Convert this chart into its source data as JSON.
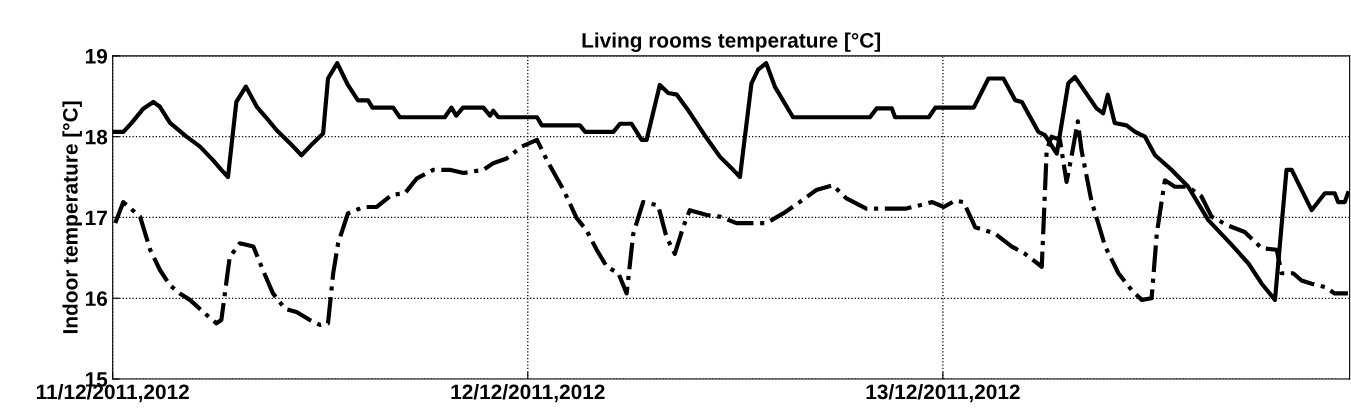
{
  "chart_data": {
    "type": "line",
    "title": "Living rooms temperature [°C]",
    "ylabel": "Indoor temperature [°C]",
    "xlim": [
      "2011-12-11T00:00",
      "2011-12-13T23:31"
    ],
    "xticks": [
      {
        "value": "2011-12-11",
        "label": "11/12/2011,2012"
      },
      {
        "value": "2011-12-12",
        "label": "12/12/2011,2012"
      },
      {
        "value": "2011-12-13",
        "label": "13/12/2011,2012"
      }
    ],
    "ylim": [
      15,
      19
    ],
    "yticks": [
      15,
      16,
      17,
      18,
      19
    ],
    "grid": true,
    "marker": "none",
    "series": [
      {
        "color": "#000000",
        "line_style": "solid",
        "x": [
          "2011-12-11T00:00",
          "2011-12-11T00:37",
          "2011-12-11T01:06",
          "2011-12-11T01:47",
          "2011-12-11T02:21",
          "2011-12-11T02:44",
          "2011-12-11T03:19",
          "2011-12-11T04:16",
          "2011-12-11T05:02",
          "2011-12-11T05:48",
          "2011-12-11T06:17",
          "2011-12-11T06:40",
          "2011-12-11T07:09",
          "2011-12-11T07:42",
          "2011-12-11T08:20",
          "2011-12-11T08:54",
          "2011-12-11T09:29",
          "2011-12-11T10:15",
          "2011-12-11T10:55",
          "2011-12-11T11:35",
          "2011-12-11T12:10",
          "2011-12-11T12:27",
          "2011-12-11T12:59",
          "2011-12-11T13:36",
          "2011-12-11T14:11",
          "2011-12-11T14:46",
          "2011-12-11T15:01",
          "2011-12-11T16:13",
          "2011-12-11T16:36",
          "2011-12-11T19:12",
          "2011-12-11T19:35",
          "2011-12-11T19:52",
          "2011-12-11T20:15",
          "2011-12-11T21:26",
          "2011-12-11T21:49",
          "2011-12-11T22:00",
          "2011-12-11T22:18",
          "2011-12-12T00:32",
          "2011-12-12T00:49",
          "2011-12-12T03:01",
          "2011-12-12T03:19",
          "2011-12-12T04:57",
          "2011-12-12T05:20",
          "2011-12-12T06:00",
          "2011-12-12T06:35",
          "2011-12-12T06:52",
          "2011-12-12T07:38",
          "2011-12-12T08:07",
          "2011-12-12T08:37",
          "2011-12-12T09:12",
          "2011-12-12T10:21",
          "2011-12-12T11:07",
          "2011-12-12T11:47",
          "2011-12-12T12:16",
          "2011-12-12T12:56",
          "2011-12-12T13:19",
          "2011-12-12T13:47",
          "2011-12-12T14:17",
          "2011-12-12T15:20",
          "2011-12-12T19:47",
          "2011-12-12T20:10",
          "2011-12-12T21:03",
          "2011-12-12T21:14",
          "2011-12-12T23:11",
          "2011-12-12T23:34",
          "2011-12-13T01:47",
          "2011-12-13T02:38",
          "2011-12-13T03:30",
          "2011-12-13T04:11",
          "2011-12-13T04:34",
          "2011-12-13T05:31",
          "2011-12-13T05:54",
          "2011-12-13T06:35",
          "2011-12-13T07:15",
          "2011-12-13T07:38",
          "2011-12-13T08:53",
          "2011-12-13T09:16",
          "2011-12-13T09:32",
          "2011-12-13T09:56",
          "2011-12-13T10:37",
          "2011-12-13T11:07",
          "2011-12-13T11:41",
          "2011-12-13T12:16",
          "2011-12-13T13:13",
          "2011-12-13T14:11",
          "2011-12-13T15:20",
          "2011-12-13T16:42",
          "2011-12-13T17:40",
          "2011-12-13T18:26",
          "2011-12-13T19:12",
          "2011-12-13T19:52",
          "2011-12-13T20:10",
          "2011-12-13T21:19",
          "2011-12-13T22:05",
          "2011-12-13T22:39",
          "2011-12-13T22:51",
          "2011-12-13T23:14",
          "2011-12-13T23:25"
        ],
        "values": [
          18.06,
          18.06,
          18.17,
          18.35,
          18.43,
          18.37,
          18.17,
          18.0,
          17.88,
          17.71,
          17.59,
          17.5,
          18.43,
          18.62,
          18.37,
          18.23,
          18.08,
          17.92,
          17.77,
          17.92,
          18.04,
          18.72,
          18.91,
          18.64,
          18.45,
          18.45,
          18.36,
          18.36,
          18.24,
          18.24,
          18.36,
          18.26,
          18.36,
          18.36,
          18.26,
          18.32,
          18.24,
          18.24,
          18.14,
          18.14,
          18.06,
          18.06,
          18.16,
          18.16,
          17.96,
          17.96,
          18.64,
          18.54,
          18.52,
          18.35,
          17.98,
          17.75,
          17.61,
          17.5,
          18.66,
          18.83,
          18.91,
          18.62,
          18.24,
          18.24,
          18.35,
          18.35,
          18.24,
          18.24,
          18.36,
          18.36,
          18.72,
          18.72,
          18.45,
          18.43,
          18.06,
          18.02,
          17.79,
          18.66,
          18.74,
          18.35,
          18.29,
          18.52,
          18.17,
          18.14,
          18.06,
          18.0,
          17.77,
          17.59,
          17.38,
          16.97,
          16.66,
          16.43,
          16.18,
          15.98,
          17.59,
          17.59,
          17.09,
          17.3,
          17.3,
          17.19,
          17.19,
          17.3
        ]
      },
      {
        "color": "#000000",
        "line_style": "dashdot",
        "x": [
          "2011-12-11T00:09",
          "2011-12-11T00:37",
          "2011-12-11T01:35",
          "2011-12-11T02:10",
          "2011-12-11T02:44",
          "2011-12-11T03:19",
          "2011-12-11T03:53",
          "2011-12-11T04:28",
          "2011-12-11T05:14",
          "2011-12-11T06:00",
          "2011-12-11T06:17",
          "2011-12-11T06:46",
          "2011-12-11T07:21",
          "2011-12-11T08:08",
          "2011-12-11T08:41",
          "2011-12-11T09:16",
          "2011-12-11T09:58",
          "2011-12-11T10:38",
          "2011-12-11T11:24",
          "2011-12-11T11:59",
          "2011-12-11T12:27",
          "2011-12-11T12:45",
          "2011-12-11T13:02",
          "2011-12-11T13:36",
          "2011-12-11T14:30",
          "2011-12-11T15:16",
          "2011-12-11T16:08",
          "2011-12-11T16:54",
          "2011-12-11T17:34",
          "2011-12-11T18:32",
          "2011-12-11T19:29",
          "2011-12-11T20:17",
          "2011-12-11T21:26",
          "2011-12-11T22:00",
          "2011-12-11T22:47",
          "2011-12-11T23:40",
          "2011-12-12T00:32",
          "2011-12-12T01:06",
          "2011-12-12T02:04",
          "2011-12-12T02:50",
          "2011-12-12T03:24",
          "2011-12-12T03:59",
          "2011-12-12T04:34",
          "2011-12-12T05:14",
          "2011-12-12T05:43",
          "2011-12-12T06:06",
          "2011-12-12T06:40",
          "2011-12-12T07:32",
          "2011-12-12T08:01",
          "2011-12-12T08:30",
          "2011-12-12T08:59",
          "2011-12-12T09:22",
          "2011-12-12T10:21",
          "2011-12-12T11:07",
          "2011-12-12T12:04",
          "2011-12-12T13:48",
          "2011-12-12T14:46",
          "2011-12-12T15:43",
          "2011-12-12T16:41",
          "2011-12-12T17:38",
          "2011-12-12T18:24",
          "2011-12-12T19:34",
          "2011-12-12T21:53",
          "2011-12-12T23:23",
          "2011-12-13T00:03",
          "2011-12-13T00:43",
          "2011-12-13T01:12",
          "2011-12-13T01:52",
          "2011-12-13T03:01",
          "2011-12-13T03:59",
          "2011-12-13T04:45",
          "2011-12-13T05:43",
          "2011-12-13T06:00",
          "2011-12-13T06:17",
          "2011-12-13T06:46",
          "2011-12-13T07:09",
          "2011-12-13T07:26",
          "2011-12-13T07:48",
          "2011-12-13T08:01",
          "2011-12-13T08:35",
          "2011-12-13T09:23",
          "2011-12-13T10:09",
          "2011-12-13T10:55",
          "2011-12-13T11:30",
          "2011-12-13T12:04",
          "2011-12-13T12:22",
          "2011-12-13T12:50",
          "2011-12-13T13:25",
          "2011-12-13T14:11",
          "2011-12-13T14:57",
          "2011-12-13T15:32",
          "2011-12-13T16:29",
          "2011-12-13T17:27",
          "2011-12-13T18:26",
          "2011-12-13T19:18",
          "2011-12-13T19:35",
          "2011-12-13T20:15",
          "2011-12-13T20:44",
          "2011-12-13T21:19",
          "2011-12-13T22:05",
          "2011-12-13T22:39",
          "2011-12-13T23:25"
        ],
        "values": [
          16.93,
          17.19,
          17.01,
          16.6,
          16.35,
          16.16,
          16.06,
          15.98,
          15.83,
          15.69,
          15.73,
          16.51,
          16.68,
          16.64,
          16.35,
          16.06,
          15.87,
          15.83,
          15.73,
          15.67,
          15.69,
          16.31,
          16.68,
          17.05,
          17.13,
          17.13,
          17.28,
          17.3,
          17.48,
          17.59,
          17.59,
          17.55,
          17.59,
          17.67,
          17.73,
          17.88,
          17.96,
          17.71,
          17.34,
          16.99,
          16.84,
          16.6,
          16.39,
          16.31,
          16.06,
          16.8,
          17.19,
          17.15,
          16.76,
          16.55,
          16.88,
          17.09,
          17.03,
          17.01,
          16.93,
          16.93,
          17.05,
          17.19,
          17.34,
          17.4,
          17.24,
          17.11,
          17.11,
          17.19,
          17.13,
          17.21,
          17.19,
          16.88,
          16.8,
          16.64,
          16.55,
          16.39,
          17.83,
          18.0,
          17.96,
          17.44,
          17.75,
          18.19,
          17.83,
          17.21,
          16.64,
          16.31,
          16.1,
          15.98,
          16.0,
          16.8,
          17.46,
          17.38,
          17.38,
          17.26,
          17.01,
          16.9,
          16.82,
          16.62,
          16.6,
          16.31,
          16.31,
          16.22,
          16.18,
          16.14,
          16.06,
          16.06
        ]
      }
    ]
  }
}
